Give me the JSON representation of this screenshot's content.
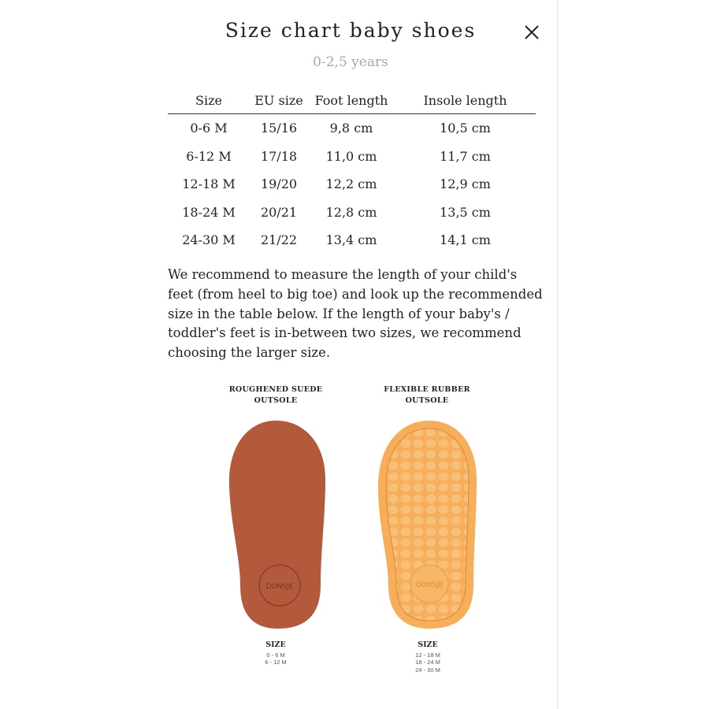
{
  "modal": {
    "title": "Size chart baby shoes",
    "subtitle": "0-2,5 years",
    "close_icon": "close-icon"
  },
  "table": {
    "headers": [
      "Size",
      "EU size",
      "Foot length",
      "Insole length"
    ],
    "rows": [
      [
        "0-6 M",
        "15/16",
        "9,8 cm",
        "10,5 cm"
      ],
      [
        "6-12 M",
        "17/18",
        "11,0 cm",
        "11,7 cm"
      ],
      [
        "12-18 M",
        "19/20",
        "12,2 cm",
        "12,9 cm"
      ],
      [
        "18-24 M",
        "20/21",
        "12,8 cm",
        "13,5 cm"
      ],
      [
        "24-30 M",
        "21/22",
        "13,4 cm",
        "14,1 cm"
      ]
    ]
  },
  "description": "We recommend to measure the length of your child's feet (from heel to big toe) and look up the recommended size in the table below. If the length of your baby's / toddler's feet is in-between two sizes, we recommend choosing the larger size.",
  "soles": [
    {
      "label_line1": "ROUGHENED SUEDE",
      "label_line2": "OUTSOLE",
      "size_heading": "SIZE",
      "sizes": [
        "0 - 6 M",
        "6 - 12 M"
      ],
      "color": "#b45a3c",
      "logo_text": "DONSJE AMSTERDAM"
    },
    {
      "label_line1": "FLEXIBLE RUBBER",
      "label_line2": "OUTSOLE",
      "size_heading": "SIZE",
      "sizes": [
        "12 - 18 M",
        "18 - 24 M",
        "24 - 30 M"
      ],
      "color": "#f6ae5a",
      "logo_text": "DONSJE AMSTERDAM"
    }
  ]
}
